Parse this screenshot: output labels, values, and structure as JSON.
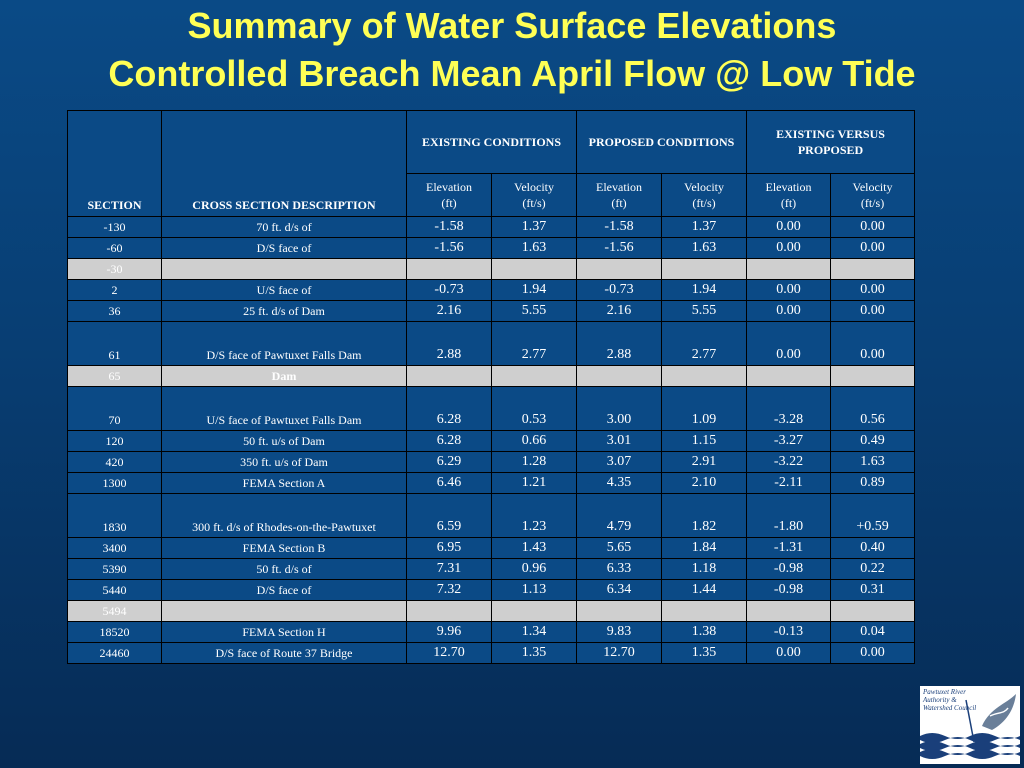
{
  "title": {
    "line1": "Summary of Water Surface Elevations",
    "line2": "Controlled Breach Mean April Flow @ Low Tide"
  },
  "table": {
    "headers": {
      "section": "SECTION",
      "description": "CROSS SECTION DESCRIPTION",
      "group_existing": "EXISTING CONDITIONS",
      "group_proposed": "PROPOSED CONDITIONS",
      "group_versus": "EXISTING VERSUS PROPOSED",
      "elevation": "Elevation",
      "velocity": "Velocity",
      "unit_ft": "(ft)",
      "unit_fts": "(ft/s)"
    },
    "rows": [
      {
        "section": "-130",
        "desc": "70 ft. d/s of",
        "ex_el": "-1.58",
        "ex_vel": "1.37",
        "pr_el": "-1.58",
        "pr_vel": "1.37",
        "d_el": "0.00",
        "d_vel": "0.00"
      },
      {
        "section": "-60",
        "desc": "D/S face of",
        "ex_el": "-1.56",
        "ex_vel": "1.63",
        "pr_el": "-1.56",
        "pr_vel": "1.63",
        "d_el": "0.00",
        "d_vel": "0.00"
      },
      {
        "section": "-30",
        "desc": "",
        "ex_el": "",
        "ex_vel": "",
        "pr_el": "",
        "pr_vel": "",
        "d_el": "",
        "d_vel": ""
      },
      {
        "section": "2",
        "desc": "U/S face of",
        "ex_el": "-0.73",
        "ex_vel": "1.94",
        "pr_el": "-0.73",
        "pr_vel": "1.94",
        "d_el": "0.00",
        "d_vel": "0.00"
      },
      {
        "section": "36",
        "desc": "25 ft. d/s of Dam",
        "ex_el": "2.16",
        "ex_vel": "5.55",
        "pr_el": "2.16",
        "pr_vel": "5.55",
        "d_el": "0.00",
        "d_vel": "0.00"
      },
      {
        "section": "61",
        "desc": "D/S face of Pawtuxet Falls Dam",
        "ex_el": "2.88",
        "ex_vel": "2.77",
        "pr_el": "2.88",
        "pr_vel": "2.77",
        "d_el": "0.00",
        "d_vel": "0.00"
      },
      {
        "section": "65",
        "desc": "Dam",
        "ex_el": "",
        "ex_vel": "",
        "pr_el": "",
        "pr_vel": "",
        "d_el": "",
        "d_vel": ""
      },
      {
        "section": "70",
        "desc": "U/S face of Pawtuxet Falls Dam",
        "ex_el": "6.28",
        "ex_vel": "0.53",
        "pr_el": "3.00",
        "pr_vel": "1.09",
        "d_el": "-3.28",
        "d_vel": "0.56"
      },
      {
        "section": "120",
        "desc": "50 ft. u/s of Dam",
        "ex_el": "6.28",
        "ex_vel": "0.66",
        "pr_el": "3.01",
        "pr_vel": "1.15",
        "d_el": "-3.27",
        "d_vel": "0.49"
      },
      {
        "section": "420",
        "desc": "350 ft. u/s of Dam",
        "ex_el": "6.29",
        "ex_vel": "1.28",
        "pr_el": "3.07",
        "pr_vel": "2.91",
        "d_el": "-3.22",
        "d_vel": "1.63"
      },
      {
        "section": "1300",
        "desc": "FEMA Section A",
        "ex_el": "6.46",
        "ex_vel": "1.21",
        "pr_el": "4.35",
        "pr_vel": "2.10",
        "d_el": "-2.11",
        "d_vel": "0.89"
      },
      {
        "section": "1830",
        "desc": "300 ft. d/s of Rhodes-on-the-Pawtuxet",
        "ex_el": "6.59",
        "ex_vel": "1.23",
        "pr_el": "4.79",
        "pr_vel": "1.82",
        "d_el": "-1.80",
        "d_vel": "+0.59"
      },
      {
        "section": "3400",
        "desc": "FEMA Section B",
        "ex_el": "6.95",
        "ex_vel": "1.43",
        "pr_el": "5.65",
        "pr_vel": "1.84",
        "d_el": "-1.31",
        "d_vel": "0.40"
      },
      {
        "section": "5390",
        "desc": "50 ft. d/s of",
        "ex_el": "7.31",
        "ex_vel": "0.96",
        "pr_el": "6.33",
        "pr_vel": "1.18",
        "d_el": "-0.98",
        "d_vel": "0.22"
      },
      {
        "section": "5440",
        "desc": "D/S face of",
        "ex_el": "7.32",
        "ex_vel": "1.13",
        "pr_el": "6.34",
        "pr_vel": "1.44",
        "d_el": "-0.98",
        "d_vel": "0.31"
      },
      {
        "section": "5494",
        "desc": "",
        "ex_el": "",
        "ex_vel": "",
        "pr_el": "",
        "pr_vel": "",
        "d_el": "",
        "d_vel": ""
      },
      {
        "section": "18520",
        "desc": "FEMA Section H",
        "ex_el": "9.96",
        "ex_vel": "1.34",
        "pr_el": "9.83",
        "pr_vel": "1.38",
        "d_el": "-0.13",
        "d_vel": "0.04"
      },
      {
        "section": "24460",
        "desc": "D/S face of Route 37 Bridge",
        "ex_el": "12.70",
        "ex_vel": "1.35",
        "pr_el": "12.70",
        "pr_vel": "1.35",
        "d_el": "0.00",
        "d_vel": "0.00"
      }
    ]
  },
  "logo": {
    "text": "Pawtuxet River Authority & Watershed Council"
  }
}
